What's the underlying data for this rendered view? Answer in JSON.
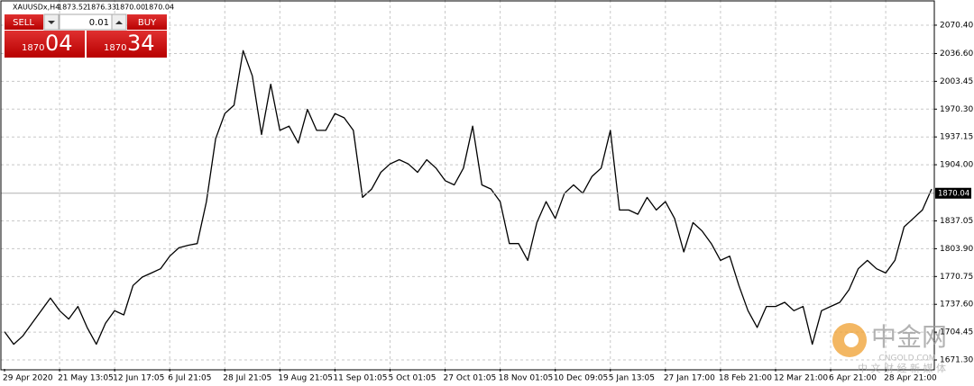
{
  "header": {
    "symbol": "XAUUSDx,H4",
    "ohlc": [
      "1873.52",
      "1876.33",
      "1870.00",
      "1870.04"
    ]
  },
  "trade_panel": {
    "sell": "SELL",
    "buy": "BUY",
    "volume": "0.01",
    "sell_big": "1870",
    "sell_pips": "04",
    "buy_big": "1870",
    "buy_pips": "34"
  },
  "watermark": {
    "name": "中金网",
    "site": "CNGOLD.COM",
    "slogan": "中 文 财 经 新 媒 体"
  },
  "chart_data": {
    "type": "line",
    "categories": [
      "29 Apr 2020",
      null,
      null,
      null,
      null,
      null,
      "21 May 13:05",
      null,
      null,
      null,
      null,
      null,
      "12 Jun 17:05",
      null,
      null,
      null,
      null,
      null,
      "6 Jul 21:05",
      null,
      null,
      null,
      null,
      null,
      "28 Jul 21:05",
      null,
      null,
      null,
      null,
      null,
      "19 Aug 21:05",
      null,
      null,
      null,
      null,
      null,
      "11 Sep 01:05",
      null,
      null,
      null,
      null,
      null,
      "5 Oct 01:05",
      null,
      null,
      null,
      null,
      null,
      "27 Oct 01:05",
      null,
      null,
      null,
      null,
      null,
      "18 Nov 01:05",
      null,
      null,
      null,
      null,
      null,
      "10 Dec 09:05",
      null,
      null,
      null,
      null,
      null,
      "5 Jan 13:05",
      null,
      null,
      null,
      null,
      null,
      "27 Jan 17:00",
      null,
      null,
      null,
      null,
      null,
      "18 Feb 21:00",
      null,
      null,
      null,
      null,
      null,
      "12 Mar 21:00",
      null,
      null,
      null,
      null,
      null,
      "6 Apr 21:00",
      null,
      null,
      null,
      null,
      null,
      "28 Apr 21:00",
      null,
      null,
      null,
      null,
      null
    ],
    "series": [
      {
        "name": "XAUUSDx",
        "color": "#000000",
        "values": [
          1705,
          1690,
          1700,
          1715,
          1730,
          1745,
          1730,
          1720,
          1735,
          1710,
          1690,
          1715,
          1730,
          1725,
          1760,
          1770,
          1775,
          1780,
          1795,
          1805,
          1808,
          1810,
          1860,
          1935,
          1965,
          1975,
          2040,
          2010,
          1940,
          2000,
          1945,
          1950,
          1930,
          1970,
          1945,
          1945,
          1965,
          1960,
          1945,
          1865,
          1875,
          1895,
          1905,
          1910,
          1905,
          1895,
          1910,
          1900,
          1885,
          1880,
          1900,
          1950,
          1880,
          1875,
          1860,
          1810,
          1810,
          1790,
          1835,
          1860,
          1840,
          1870,
          1880,
          1870,
          1890,
          1900,
          1945,
          1850,
          1850,
          1845,
          1865,
          1850,
          1860,
          1840,
          1800,
          1835,
          1825,
          1810,
          1790,
          1795,
          1760,
          1730,
          1710,
          1735,
          1735,
          1740,
          1730,
          1735,
          1690,
          1730,
          1735,
          1740,
          1755,
          1780,
          1790,
          1780,
          1775,
          1790,
          1830,
          1840,
          1850,
          1875
        ]
      }
    ],
    "ylim": [
      1660.6,
      2100.4
    ],
    "yticks": [
      {
        "value": 1671.3,
        "label": "1671.30"
      },
      1704.45,
      {
        "value": 1737.6,
        "label": "1737.60"
      },
      1770.75,
      {
        "value": 1803.9,
        "label": "1803.90"
      },
      1837.05,
      {
        "value": 1904,
        "label": "1904.00"
      },
      1937.15,
      {
        "value": 1970.3,
        "label": "1970.30"
      },
      2003.45,
      {
        "value": 2036.6,
        "label": "2036.60"
      },
      {
        "value": 2070.4,
        "label": "2070.40"
      }
    ],
    "current_price": 1870.04,
    "grid": true
  }
}
